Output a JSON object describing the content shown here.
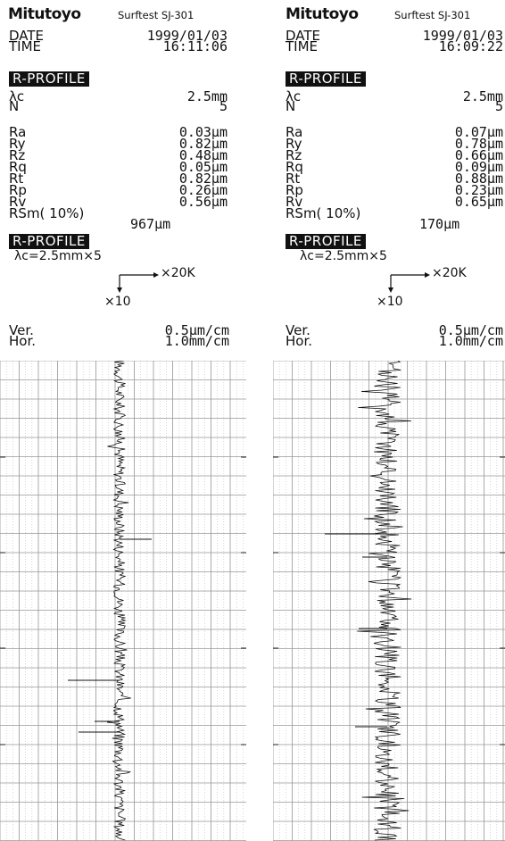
{
  "printouts": [
    {
      "brand": "Mitutoyo",
      "model": "Surftest SJ-301",
      "date_label": "DATE",
      "date_value": "1999/01/03",
      "time_label": "TIME",
      "time_value": "16:11:06",
      "profile_title": "R-PROFILE",
      "lambda_c_label": "λc",
      "lambda_c_value": "2.5mm",
      "n_label": "N",
      "n_value": "5",
      "params": [
        {
          "label": "Ra",
          "value": "0.03μm"
        },
        {
          "label": "Ry",
          "value": "0.82μm"
        },
        {
          "label": "Rz",
          "value": "0.48μm"
        },
        {
          "label": "Rq",
          "value": "0.05μm"
        },
        {
          "label": "Rt",
          "value": "0.82μm"
        },
        {
          "label": "Rp",
          "value": "0.26μm"
        },
        {
          "label": "Rv",
          "value": "0.56μm"
        }
      ],
      "rsm_label": "RSm( 10%)",
      "rsm_value": "967μm",
      "profile_title_2": "R-PROFILE",
      "cutoff_text": "λc=2.5mm×5",
      "mag_h": "×20K",
      "mag_v": "×10",
      "ver_label": "Ver.",
      "ver_value": "0.5μm/cm",
      "hor_label": "Hor.",
      "hor_value": "1.0mm/cm",
      "profile_roughness": 0.3
    },
    {
      "brand": "Mitutoyo",
      "model": "Surftest SJ-301",
      "date_label": "DATE",
      "date_value": "1999/01/03",
      "time_label": "TIME",
      "time_value": "16:09:22",
      "profile_title": "R-PROFILE",
      "lambda_c_label": "λc",
      "lambda_c_value": "2.5mm",
      "n_label": "N",
      "n_value": "5",
      "params": [
        {
          "label": "Ra",
          "value": "0.07μm"
        },
        {
          "label": "Ry",
          "value": "0.78μm"
        },
        {
          "label": "Rz",
          "value": "0.66μm"
        },
        {
          "label": "Rq",
          "value": "0.09μm"
        },
        {
          "label": "Rt",
          "value": "0.88μm"
        },
        {
          "label": "Rp",
          "value": "0.23μm"
        },
        {
          "label": "Rv",
          "value": "0.65μm"
        }
      ],
      "rsm_label": "RSm( 10%)",
      "rsm_value": "170μm",
      "profile_title_2": "R-PROFILE",
      "cutoff_text": "λc=2.5mm×5",
      "mag_h": "×20K",
      "mag_v": "×10",
      "ver_label": "Ver.",
      "ver_value": "0.5μm/cm",
      "hor_label": "Hor.",
      "hor_value": "1.0mm/cm",
      "profile_roughness": 0.7
    }
  ]
}
